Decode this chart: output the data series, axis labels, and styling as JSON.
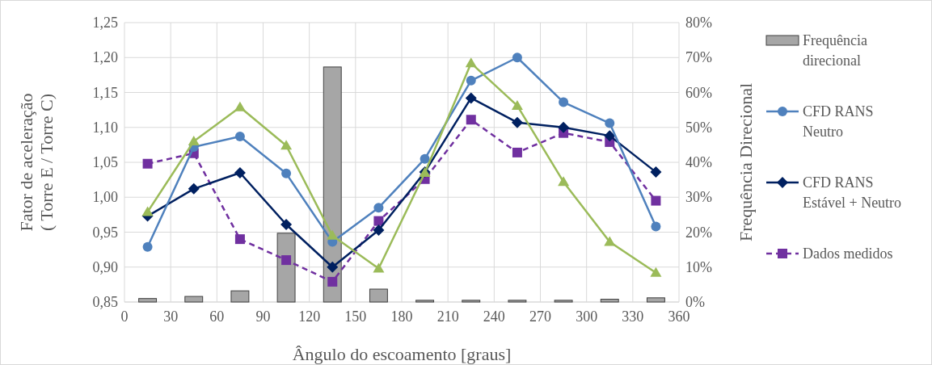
{
  "chart_data": {
    "type": "line",
    "xlabel": "Ângulo do escoamento [graus]",
    "ylabel": "Fator de aceleração\n( Torre E / Torre C)",
    "y2label": "Frequência Direcional",
    "x": [
      15,
      45,
      75,
      105,
      135,
      165,
      195,
      225,
      255,
      285,
      315,
      345
    ],
    "xlim": [
      0,
      360
    ],
    "xticks": [
      0,
      30,
      60,
      90,
      120,
      150,
      180,
      210,
      240,
      270,
      300,
      330,
      360
    ],
    "ylim": [
      0.85,
      1.25
    ],
    "yticks": [
      {
        "value": 0.85,
        "label": "0,85"
      },
      {
        "value": 0.9,
        "label": "0,90"
      },
      {
        "value": 0.95,
        "label": "0,95"
      },
      {
        "value": 1.0,
        "label": "1,00"
      },
      {
        "value": 1.05,
        "label": "1,05"
      },
      {
        "value": 1.1,
        "label": "1,10"
      },
      {
        "value": 1.15,
        "label": "1,15"
      },
      {
        "value": 1.2,
        "label": "1,20"
      },
      {
        "value": 1.25,
        "label": "1,25"
      }
    ],
    "y2lim": [
      0,
      80
    ],
    "y2ticks": [
      {
        "value": 0,
        "label": "0%"
      },
      {
        "value": 10,
        "label": "10%"
      },
      {
        "value": 20,
        "label": "20%"
      },
      {
        "value": 30,
        "label": "30%"
      },
      {
        "value": 40,
        "label": "40%"
      },
      {
        "value": 50,
        "label": "50%"
      },
      {
        "value": 60,
        "label": "60%"
      },
      {
        "value": 70,
        "label": "70%"
      },
      {
        "value": 80,
        "label": "80%"
      }
    ],
    "grid": true,
    "legend": "right",
    "series": [
      {
        "name": "Frequência\ndirecional",
        "type": "bar",
        "axis": "y2",
        "color": "#a6a6a6",
        "values": [
          1.0,
          1.6,
          3.2,
          19.7,
          67.3,
          3.7,
          0.5,
          0.5,
          0.5,
          0.5,
          0.8,
          1.2
        ]
      },
      {
        "color": "#9bbb59",
        "marker": "triangle",
        "line_style": "solid",
        "values": [
          0.979,
          1.08,
          1.129,
          1.074,
          0.945,
          0.898,
          1.035,
          1.192,
          1.131,
          1.022,
          0.936,
          0.892
        ]
      },
      {
        "name": "CFD RANS\nNeutro",
        "color": "#4f81bd",
        "marker": "circle",
        "line_style": "solid",
        "values": [
          0.929,
          1.072,
          1.087,
          1.034,
          0.936,
          0.985,
          1.055,
          1.167,
          1.2,
          1.136,
          1.106,
          0.958
        ]
      },
      {
        "name": "CFD RANS\nEstável + Neutro",
        "color": "#002060",
        "marker": "diamond",
        "line_style": "solid",
        "values": [
          0.973,
          1.012,
          1.035,
          0.961,
          0.9,
          0.953,
          1.036,
          1.142,
          1.107,
          1.1,
          1.088,
          1.036
        ]
      },
      {
        "name": "Dados medidos",
        "color": "#7030a0",
        "marker": "square",
        "line_style": "dashed",
        "values": [
          1.048,
          1.063,
          0.94,
          0.91,
          0.879,
          0.966,
          1.026,
          1.111,
          1.064,
          1.092,
          1.079,
          0.995
        ]
      }
    ]
  }
}
